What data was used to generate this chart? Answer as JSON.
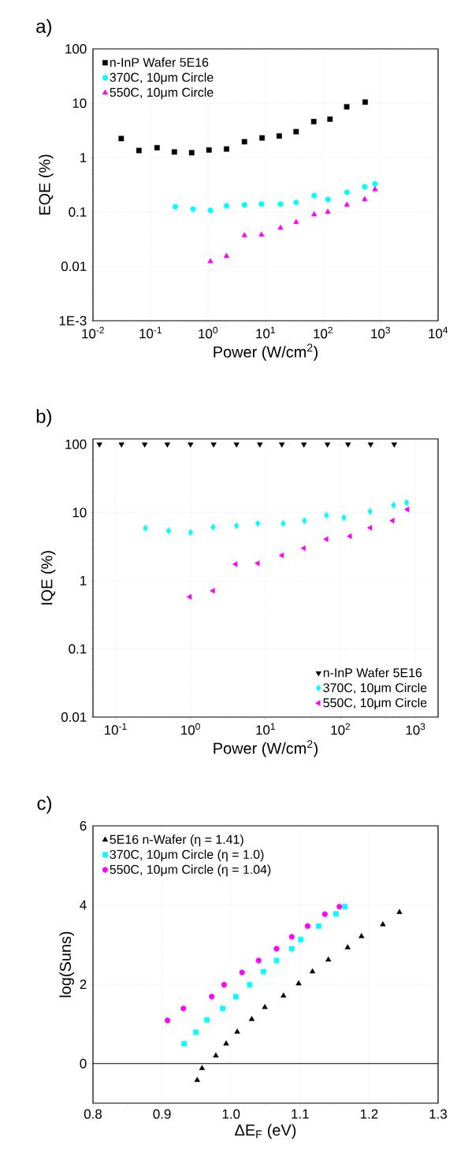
{
  "chart_data": [
    {
      "type": "scatter",
      "title": "a)",
      "xlabel": "Power (W/cm$^{2}$)",
      "ylabel": "EQE (%)",
      "log": "xy",
      "grid": true,
      "legend": "top left",
      "xlim": [
        0.01,
        10000
      ],
      "ylim": [
        0.001,
        100
      ],
      "xticks": [
        {
          "value": 0.01,
          "label": "10$^{-2}$"
        },
        {
          "value": 0.1,
          "label": "10$^{-1}$"
        },
        {
          "value": 1,
          "label": "10$^{0}$"
        },
        {
          "value": 10,
          "label": "10$^{1}$"
        },
        {
          "value": 100,
          "label": "10$^{2}$"
        },
        {
          "value": 1000,
          "label": "10$^{3}$"
        },
        {
          "value": 10000,
          "label": "10$^{4}$"
        }
      ],
      "yticks": [
        {
          "value": 0.001,
          "label": "1E-3"
        },
        0.01,
        0.1,
        1,
        10,
        100
      ],
      "series": [
        {
          "name": "n-InP Wafer 5E16",
          "color": "#000000",
          "marker": "square",
          "x": [
            0.031,
            0.063,
            0.13,
            0.26,
            0.52,
            1.04,
            2.1,
            4.3,
            8.7,
            17.3,
            34,
            69,
            132,
            258,
            540
          ],
          "values": [
            2.24,
            1.35,
            1.52,
            1.27,
            1.23,
            1.38,
            1.44,
            1.96,
            2.3,
            2.5,
            3.0,
            4.6,
            5.1,
            8.6,
            10.5
          ]
        },
        {
          "name": "370C, 10μm Circle",
          "color": "#00ffff",
          "marker": "circle",
          "x": [
            0.27,
            0.55,
            1.1,
            2.1,
            4.3,
            8.5,
            18.2,
            34,
            70,
            121,
            260,
            530,
            800
          ],
          "values": [
            0.125,
            0.113,
            0.107,
            0.13,
            0.135,
            0.14,
            0.14,
            0.15,
            0.2,
            0.17,
            0.23,
            0.29,
            0.33
          ]
        },
        {
          "name": "550C, 10μm Circle",
          "color": "#ff00ff",
          "marker": "triangle",
          "x": [
            1.1,
            2.1,
            4.3,
            8.5,
            18.2,
            34,
            70,
            121,
            260,
            530,
            800
          ],
          "values": [
            0.0123,
            0.0154,
            0.037,
            0.038,
            0.051,
            0.065,
            0.09,
            0.1,
            0.135,
            0.17,
            0.26
          ]
        }
      ]
    },
    {
      "type": "scatter",
      "title": "b)",
      "xlabel": "Power (W/cm$^{2}$)",
      "ylabel": "IQE (%)",
      "log": "xy",
      "grid": true,
      "legend": "bottom right",
      "xlim": [
        0.05,
        2000
      ],
      "ylim": [
        0.01,
        120
      ],
      "xticks": [
        {
          "value": 0.1,
          "label": "10$^{-1}$"
        },
        {
          "value": 1,
          "label": "10$^{0}$"
        },
        {
          "value": 10,
          "label": "10$^{1}$"
        },
        {
          "value": 100,
          "label": "10$^{2}$"
        },
        {
          "value": 1000,
          "label": "10$^{3}$"
        }
      ],
      "yticks": [
        0.01,
        0.1,
        1,
        10,
        100
      ],
      "series": [
        {
          "name": "n-InP Wafer 5E16",
          "color": "#000000",
          "marker": "triangle-down",
          "x": [
            0.061,
            0.12,
            0.245,
            0.49,
            1.0,
            2.03,
            4.1,
            8.4,
            16.5,
            32.5,
            67,
            126,
            252,
            520
          ],
          "values": [
            100,
            100,
            100,
            100,
            100,
            100,
            100,
            100,
            100,
            100,
            100,
            100,
            100,
            100
          ]
        },
        {
          "name": "370C, 10μm Circle",
          "color": "#00ffff",
          "marker": "diamond",
          "x": [
            0.25,
            0.51,
            1.0,
            2.0,
            4.1,
            7.9,
            17.2,
            33,
            65,
            111,
            247,
            510,
            760
          ],
          "values": [
            5.9,
            5.4,
            5.1,
            6.1,
            6.4,
            6.9,
            6.9,
            7.6,
            9.1,
            8.4,
            10.4,
            12.8,
            14.0
          ]
        },
        {
          "name": "550C, 10μm Circle",
          "color": "#ff00ff",
          "marker": "triangle-left",
          "x": [
            0.98,
            2.0,
            4.0,
            7.9,
            16.6,
            32.5,
            65,
            134,
            250,
            495,
            780
          ],
          "values": [
            0.58,
            0.71,
            1.75,
            1.8,
            2.35,
            3.0,
            4.07,
            4.5,
            5.96,
            7.6,
            11.1
          ]
        }
      ]
    },
    {
      "type": "scatter",
      "title": "c)",
      "xlabel": "ΔE$_{F}$ (eV)",
      "ylabel": "log(Suns)",
      "grid": true,
      "legend": "top left",
      "xlim": [
        0.8,
        1.3
      ],
      "ylim": [
        -1,
        6
      ],
      "xticks": [
        0.8,
        0.9,
        {
          "value": 1,
          "label": "1.0"
        },
        1.1,
        1.2,
        1.3
      ],
      "yticks": [
        0,
        2,
        4,
        6
      ],
      "ref_lines": [
        {
          "axis": "y",
          "value": 0,
          "color": "#000000"
        }
      ],
      "series": [
        {
          "name": "5E16 n-Wafer (η = 1.41)",
          "color": "#000000",
          "marker": "triangle",
          "x": [
            0.951,
            0.958,
            0.978,
            0.993,
            1.009,
            1.03,
            1.049,
            1.076,
            1.098,
            1.118,
            1.141,
            1.169,
            1.189,
            1.22,
            1.244
          ],
          "values": [
            -0.42,
            -0.12,
            0.2,
            0.5,
            0.8,
            1.12,
            1.42,
            1.71,
            2.02,
            2.32,
            2.62,
            2.93,
            3.21,
            3.51,
            3.82
          ]
        },
        {
          "name": "370C, 10μm Circle (η = 1.0)",
          "color": "#00ffff",
          "marker": "square",
          "x": [
            0.932,
            0.949,
            0.965,
            0.988,
            1.007,
            1.027,
            1.047,
            1.066,
            1.088,
            1.101,
            1.127,
            1.152,
            1.165
          ],
          "values": [
            0.5,
            0.79,
            1.1,
            1.39,
            1.69,
            1.99,
            2.32,
            2.6,
            2.9,
            3.13,
            3.47,
            3.78,
            3.96
          ]
        },
        {
          "name": "550C, 10μm Circle (η = 1.04)",
          "color": "#ff00ff",
          "marker": "circle",
          "x": [
            0.908,
            0.931,
            0.972,
            0.99,
            1.016,
            1.04,
            1.066,
            1.088,
            1.111,
            1.136,
            1.157
          ],
          "values": [
            1.09,
            1.39,
            1.69,
            1.99,
            2.3,
            2.6,
            2.9,
            3.2,
            3.47,
            3.77,
            3.96
          ]
        }
      ]
    }
  ]
}
